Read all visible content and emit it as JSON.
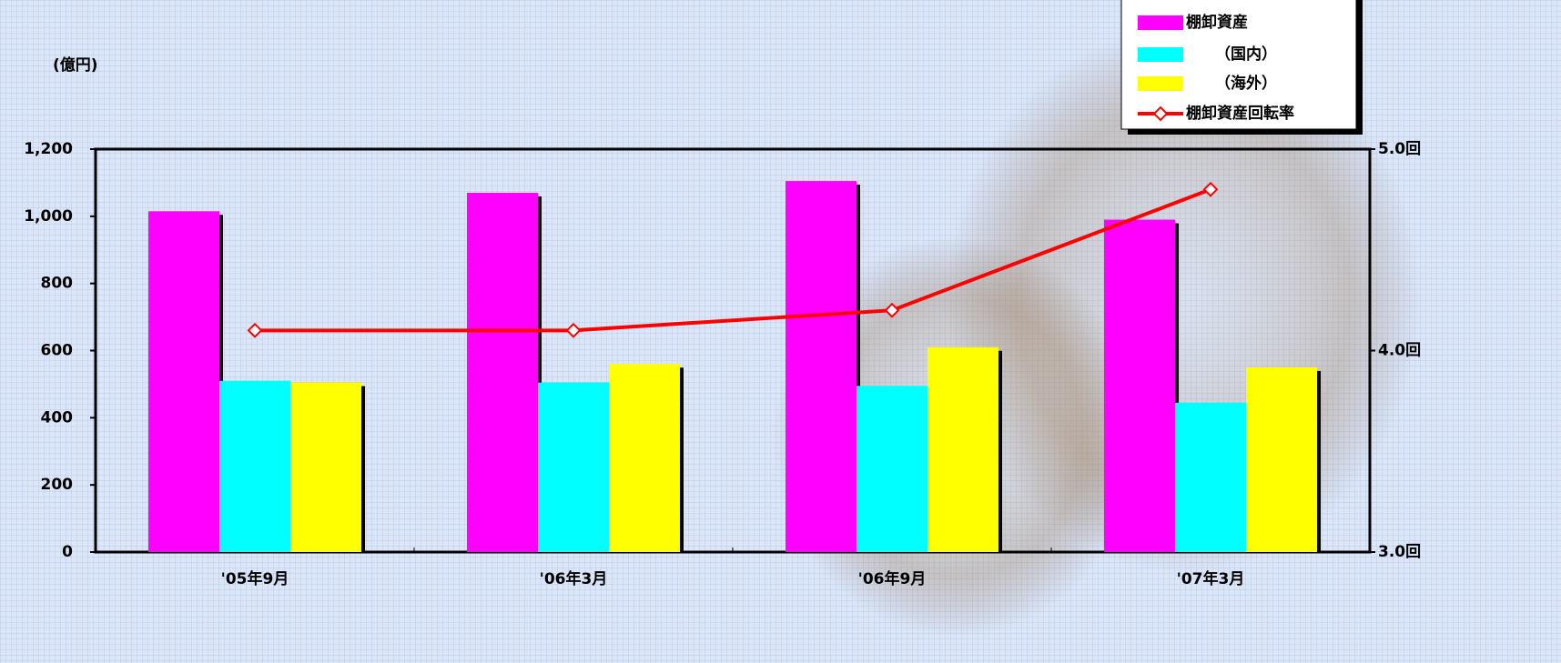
{
  "chart_data": {
    "type": "bar",
    "y_label": "(億円)",
    "categories": [
      "'05年9月",
      "'06年3月",
      "'06年9月",
      "'07年3月"
    ],
    "series": [
      {
        "name": "棚卸資産",
        "color": "#ff00ff",
        "values": [
          1015,
          1070,
          1105,
          990
        ]
      },
      {
        "name": "（国内）",
        "color": "#00ffff",
        "values": [
          510,
          505,
          495,
          445
        ]
      },
      {
        "name": "（海外）",
        "color": "#ffff00",
        "values": [
          505,
          560,
          610,
          550
        ]
      },
      {
        "name": "棚卸資産回転率",
        "color": "#ff0000",
        "type": "line",
        "axis": "y2",
        "values": [
          4.1,
          4.1,
          4.2,
          4.8
        ]
      }
    ],
    "ylim": [
      0,
      1200
    ],
    "yticks": [
      0,
      200,
      400,
      600,
      800,
      {
        "value": 1000,
        "label": "1,000"
      },
      {
        "value": 1200,
        "label": "1,200"
      }
    ],
    "y2lim": [
      3.0,
      5.0
    ],
    "y2ticks": [
      {
        "value": 3.0,
        "label": "3.0回"
      },
      {
        "value": 4.0,
        "label": "4.0回"
      },
      {
        "value": 5.0,
        "label": "5.0回"
      }
    ],
    "legend": "top-right"
  }
}
